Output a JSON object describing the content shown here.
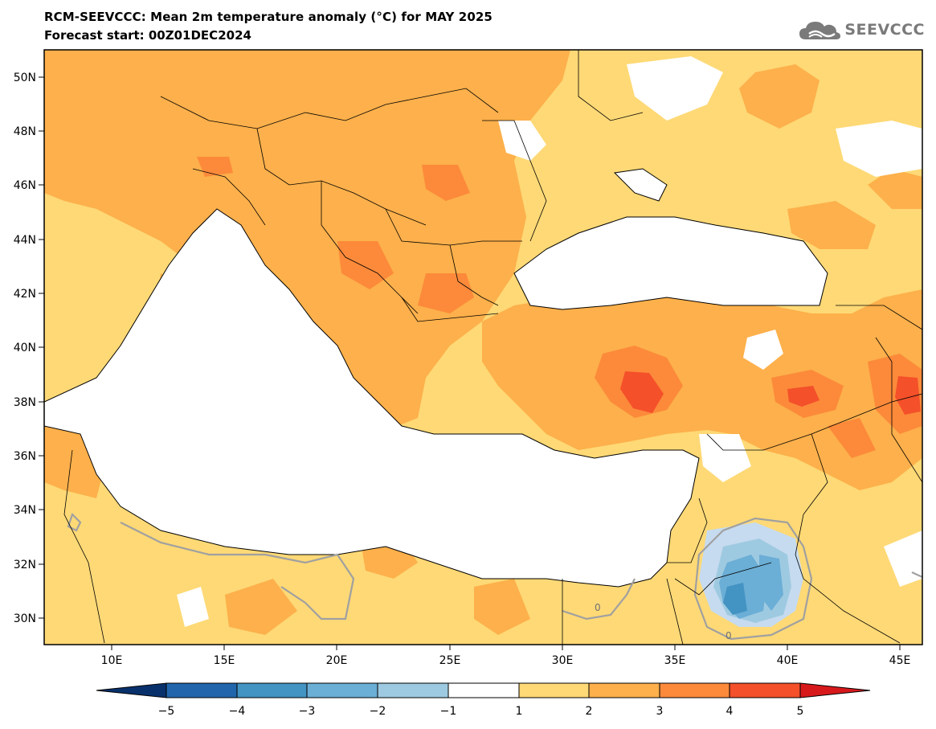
{
  "header": {
    "title": "RCM-SEEVCCC: Mean 2m temperature anomaly (°C) for MAY 2025",
    "subtitle": "Forecast start: 00Z01DEC2024"
  },
  "logo": {
    "text": "SEEVCCC",
    "icon": "cloud-icon"
  },
  "map": {
    "lon_range": [
      7,
      46
    ],
    "lat_range": [
      29,
      51
    ],
    "lat_ticks": [
      "50N",
      "48N",
      "46N",
      "44N",
      "42N",
      "40N",
      "38N",
      "36N",
      "34N",
      "32N",
      "30N"
    ],
    "lon_ticks": [
      "10E",
      "15E",
      "20E",
      "25E",
      "30E",
      "35E",
      "40E",
      "45E"
    ],
    "contour_label": "0"
  },
  "colorbar": {
    "levels": [
      "−5",
      "−4",
      "−3",
      "−2",
      "−1",
      "1",
      "2",
      "3",
      "4",
      "5"
    ],
    "colors": [
      "#08306b",
      "#2166ac",
      "#4393c3",
      "#6baed6",
      "#9ecae1",
      "#ffffff",
      "#fed976",
      "#fdb04b",
      "#fc8a3a",
      "#f4502a",
      "#d7191c"
    ]
  }
}
